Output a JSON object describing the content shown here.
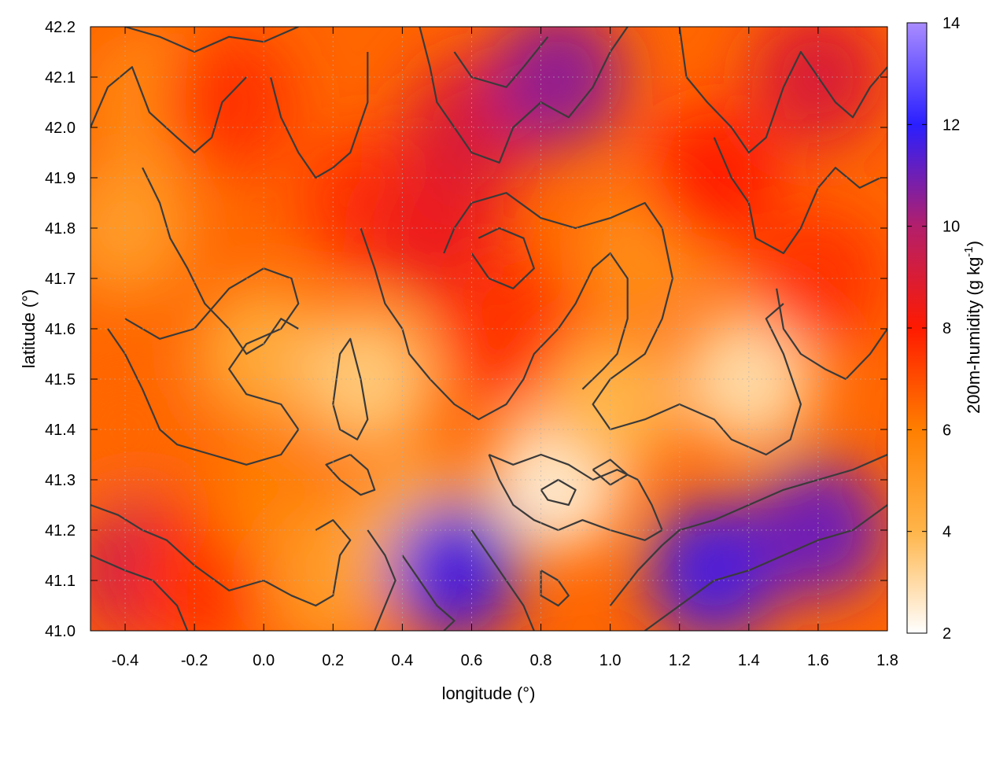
{
  "chart_data": {
    "type": "heatmap",
    "title": "",
    "xlabel": "longitude (°)",
    "ylabel": "latitude (°)",
    "xlim": [
      -0.5,
      1.8
    ],
    "ylim": [
      41.0,
      42.2
    ],
    "x_ticks": [
      "-0.4",
      "-0.2",
      "0.0",
      "0.2",
      "0.4",
      "0.6",
      "0.8",
      "1.0",
      "1.2",
      "1.4",
      "1.6",
      "1.8"
    ],
    "y_ticks": [
      "41.0",
      "41.1",
      "41.2",
      "41.3",
      "41.4",
      "41.5",
      "41.6",
      "41.7",
      "41.8",
      "41.9",
      "42.0",
      "42.1",
      "42.2"
    ],
    "grid": true,
    "colorbar": {
      "label": "200m-humidity (g kg",
      "label_superscript": "-1",
      "label_suffix": ")",
      "range": [
        2,
        14
      ],
      "ticks": [
        "2",
        "4",
        "6",
        "8",
        "10",
        "12",
        "14"
      ],
      "colors": [
        "#ffffff",
        "#ffb54a",
        "#ff7f00",
        "#ff1a00",
        "#b31f6b",
        "#2a1fff",
        "#a98cff"
      ]
    },
    "contours": "dark gray terrain elevation contour lines",
    "regions": [
      {
        "lon": -0.35,
        "lat": 41.12,
        "value": 9.5
      },
      {
        "lon": -0.2,
        "lat": 41.1,
        "value": 7.5
      },
      {
        "lon": -0.4,
        "lat": 41.4,
        "value": 6.5
      },
      {
        "lon": -0.4,
        "lat": 41.8,
        "value": 5.0
      },
      {
        "lon": -0.3,
        "lat": 42.05,
        "value": 5.5
      },
      {
        "lon": -0.1,
        "lat": 42.05,
        "value": 7.5
      },
      {
        "lon": 0.0,
        "lat": 41.55,
        "value": 4.5
      },
      {
        "lon": 0.05,
        "lat": 41.25,
        "value": 6.0
      },
      {
        "lon": 0.2,
        "lat": 41.1,
        "value": 5.0
      },
      {
        "lon": 0.3,
        "lat": 41.85,
        "value": 7.5
      },
      {
        "lon": 0.3,
        "lat": 41.5,
        "value": 3.5
      },
      {
        "lon": 0.45,
        "lat": 41.2,
        "value": 4.0
      },
      {
        "lon": 0.5,
        "lat": 41.8,
        "value": 8.5
      },
      {
        "lon": 0.6,
        "lat": 42.0,
        "value": 9.0
      },
      {
        "lon": 0.85,
        "lat": 42.1,
        "value": 10.5
      },
      {
        "lon": 0.7,
        "lat": 41.6,
        "value": 7.5
      },
      {
        "lon": 0.55,
        "lat": 41.12,
        "value": 11.5
      },
      {
        "lon": 0.85,
        "lat": 41.3,
        "value": 2.5
      },
      {
        "lon": 1.0,
        "lat": 41.45,
        "value": 4.0
      },
      {
        "lon": 1.1,
        "lat": 41.75,
        "value": 5.5
      },
      {
        "lon": 1.3,
        "lat": 41.9,
        "value": 8.0
      },
      {
        "lon": 1.4,
        "lat": 41.5,
        "value": 3.0
      },
      {
        "lon": 1.3,
        "lat": 41.12,
        "value": 11.5
      },
      {
        "lon": 1.6,
        "lat": 41.2,
        "value": 11.0
      },
      {
        "lon": 1.6,
        "lat": 41.7,
        "value": 7.5
      },
      {
        "lon": 1.6,
        "lat": 42.1,
        "value": 9.0
      }
    ]
  }
}
